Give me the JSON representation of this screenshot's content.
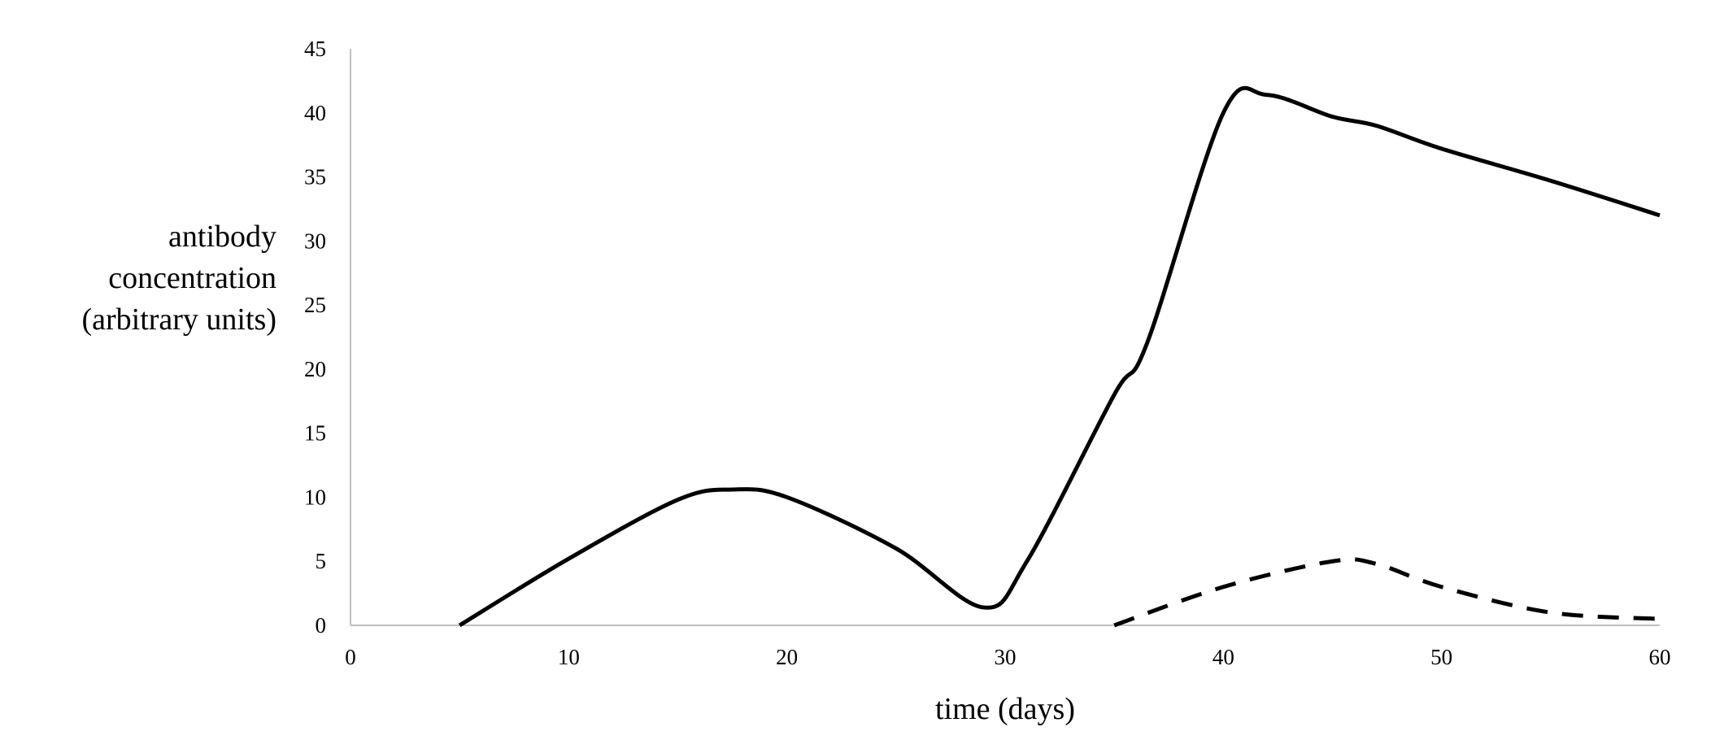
{
  "chart_data": {
    "type": "line",
    "title": "",
    "xlabel": "time (days)",
    "ylabel": [
      "antibody",
      "concentration",
      "(arbitrary units)"
    ],
    "xlim": [
      0,
      60
    ],
    "ylim": [
      0,
      45
    ],
    "xticks": [
      0,
      10,
      20,
      30,
      40,
      50,
      60
    ],
    "yticks": [
      0,
      5,
      10,
      15,
      20,
      25,
      30,
      35,
      40,
      45
    ],
    "grid": false,
    "legend": "none",
    "series": [
      {
        "name": "solid",
        "style": "solid",
        "color": "#000000",
        "x": [
          5,
          10,
          15,
          17.5,
          20,
          25,
          29,
          31,
          35,
          36.5,
          40,
          42,
          45,
          47,
          50,
          55,
          60
        ],
        "y": [
          0,
          5.2,
          9.8,
          10.6,
          10,
          6,
          1.4,
          5,
          18,
          22,
          40,
          41.4,
          39.7,
          39,
          37.2,
          34.7,
          32
        ]
      },
      {
        "name": "dashed",
        "style": "dashed",
        "color": "#000000",
        "x": [
          35,
          40,
          45,
          47,
          50,
          55,
          60
        ],
        "y": [
          0,
          3,
          5,
          4.8,
          3,
          1,
          0.5
        ]
      }
    ]
  }
}
